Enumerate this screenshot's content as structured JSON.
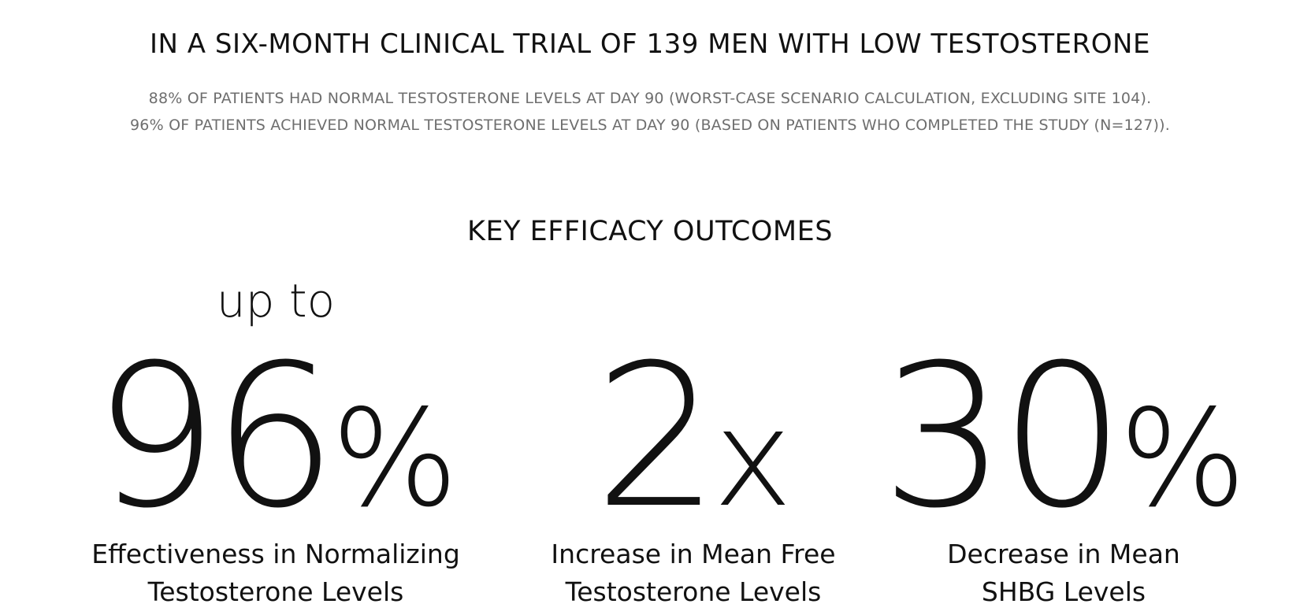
{
  "headline": "IN A SIX-MONTH CLINICAL TRIAL OF 139 MEN WITH LOW TESTOSTERONE",
  "notes": [
    "88% OF PATIENTS HAD NORMAL TESTOSTERONE LEVELS AT DAY 90 (WORST-CASE SCENARIO CALCULATION, EXCLUDING SITE 104).",
    "96% OF PATIENTS ACHIEVED NORMAL TESTOSTERONE LEVELS AT DAY 90 (BASED ON PATIENTS WHO COMPLETED THE STUDY (N=127))."
  ],
  "section_title": "KEY EFFICACY OUTCOMES",
  "stats": [
    {
      "prefix": "up to",
      "number": "96",
      "unit": "%",
      "label_lines": [
        "Effectiveness in Normalizing",
        "Testosterone Levels"
      ]
    },
    {
      "prefix": "",
      "number": "2",
      "unit": "x",
      "label_lines": [
        "Increase in Mean Free",
        "Testosterone Levels"
      ]
    },
    {
      "prefix": "",
      "number": "30",
      "unit": "%",
      "label_lines": [
        "Decrease in Mean",
        "SHBG Levels"
      ]
    }
  ],
  "colors": {
    "text": "#111111",
    "muted": "#6e6e6e",
    "background": "#ffffff"
  }
}
